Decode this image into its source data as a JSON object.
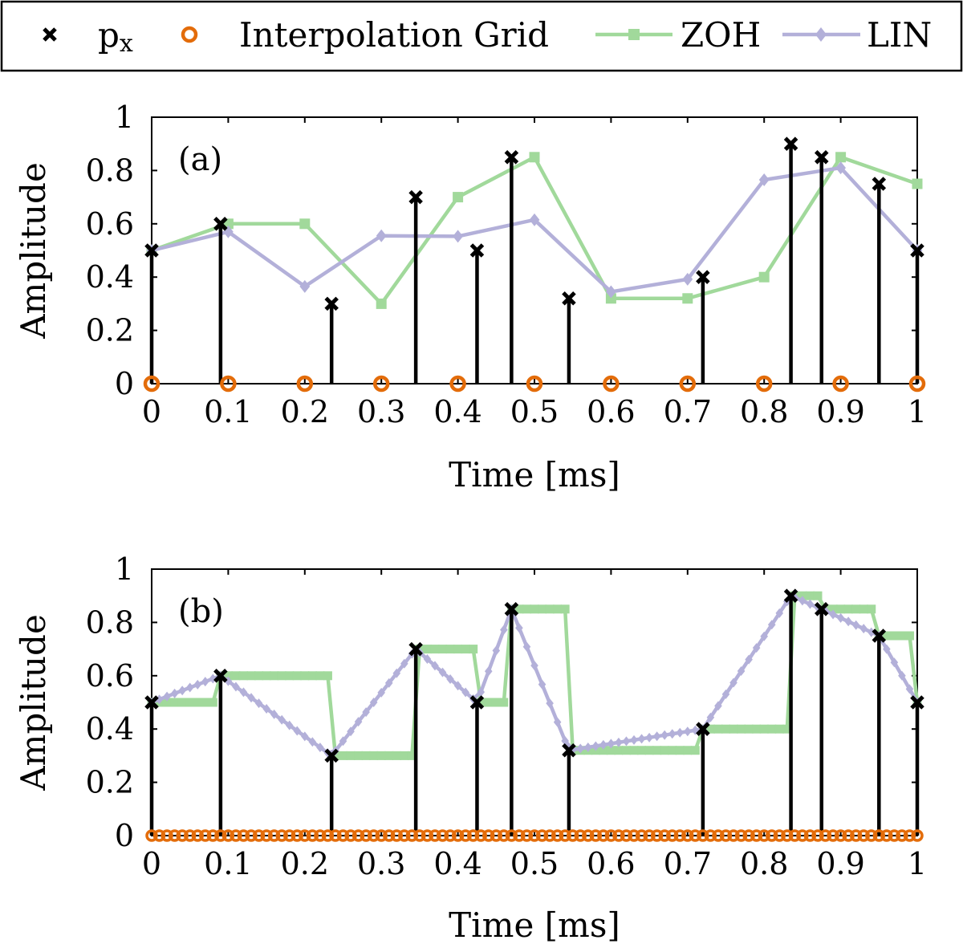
{
  "legend": {
    "items": [
      {
        "label": "p",
        "subscript": "x",
        "marker": "cross",
        "color": "#000000"
      },
      {
        "label": "Interpolation Grid",
        "marker": "circle",
        "color": "#e36c0a"
      },
      {
        "label": "ZOH",
        "marker": "square",
        "color": "#a1d99b"
      },
      {
        "label": "LIN",
        "marker": "diamond",
        "color": "#b3b0d9"
      }
    ]
  },
  "chart_data": [
    {
      "type": "line",
      "panel_label": "(a)",
      "xlabel": "Time [ms]",
      "ylabel": "Amplitude",
      "xlim": [
        0,
        1
      ],
      "ylim": [
        0,
        1
      ],
      "xticks": [
        "0",
        "0.1",
        "0.2",
        "0.3",
        "0.4",
        "0.5",
        "0.6",
        "0.7",
        "0.8",
        "0.9",
        "1"
      ],
      "yticks": [
        "0",
        "0.2",
        "0.4",
        "0.6",
        "0.8",
        "1"
      ],
      "stems": {
        "name": "px",
        "x": [
          0,
          0.09,
          0.235,
          0.345,
          0.425,
          0.47,
          0.545,
          0.72,
          0.835,
          0.875,
          0.95,
          1.0
        ],
        "y": [
          0.5,
          0.6,
          0.3,
          0.7,
          0.5,
          0.85,
          0.32,
          0.4,
          0.9,
          0.85,
          0.75,
          0.5
        ]
      },
      "grid": {
        "name": "Interpolation Grid",
        "x": [
          0,
          0.1,
          0.2,
          0.3,
          0.4,
          0.5,
          0.6,
          0.7,
          0.8,
          0.9,
          1.0
        ],
        "y": 0
      },
      "series": [
        {
          "name": "ZOH",
          "x": [
            0,
            0.1,
            0.2,
            0.3,
            0.4,
            0.5,
            0.6,
            0.7,
            0.8,
            0.9,
            1.0
          ],
          "values": [
            0.5,
            0.6,
            0.6,
            0.3,
            0.7,
            0.85,
            0.32,
            0.32,
            0.4,
            0.85,
            0.75
          ]
        },
        {
          "name": "LIN",
          "x": [
            0,
            0.1,
            0.2,
            0.3,
            0.4,
            0.5,
            0.6,
            0.7,
            0.8,
            0.9,
            1.0
          ],
          "values": [
            0.5,
            0.57,
            0.365,
            0.555,
            0.553,
            0.615,
            0.345,
            0.392,
            0.765,
            0.81,
            0.5
          ]
        }
      ]
    },
    {
      "type": "line",
      "panel_label": "(b)",
      "xlabel": "Time [ms]",
      "ylabel": "Amplitude",
      "xlim": [
        0,
        1
      ],
      "ylim": [
        0,
        1
      ],
      "xticks": [
        "0",
        "0.1",
        "0.2",
        "0.3",
        "0.4",
        "0.5",
        "0.6",
        "0.7",
        "0.8",
        "0.9",
        "1"
      ],
      "yticks": [
        "0",
        "0.2",
        "0.4",
        "0.6",
        "0.8",
        "1"
      ],
      "stems": {
        "name": "px",
        "x": [
          0,
          0.09,
          0.235,
          0.345,
          0.425,
          0.47,
          0.545,
          0.72,
          0.835,
          0.875,
          0.95,
          1.0
        ],
        "y": [
          0.5,
          0.6,
          0.3,
          0.7,
          0.5,
          0.85,
          0.32,
          0.4,
          0.9,
          0.85,
          0.75,
          0.5
        ]
      },
      "grid": {
        "name": "Interpolation Grid",
        "x_start": 0,
        "x_end": 1,
        "count": 101,
        "y": 0
      },
      "series": [
        {
          "name": "ZOH",
          "dense_points": 101,
          "method": "zero-order hold of px"
        },
        {
          "name": "LIN",
          "dense_points": 101,
          "method": "linear interpolation of px"
        }
      ]
    }
  ]
}
